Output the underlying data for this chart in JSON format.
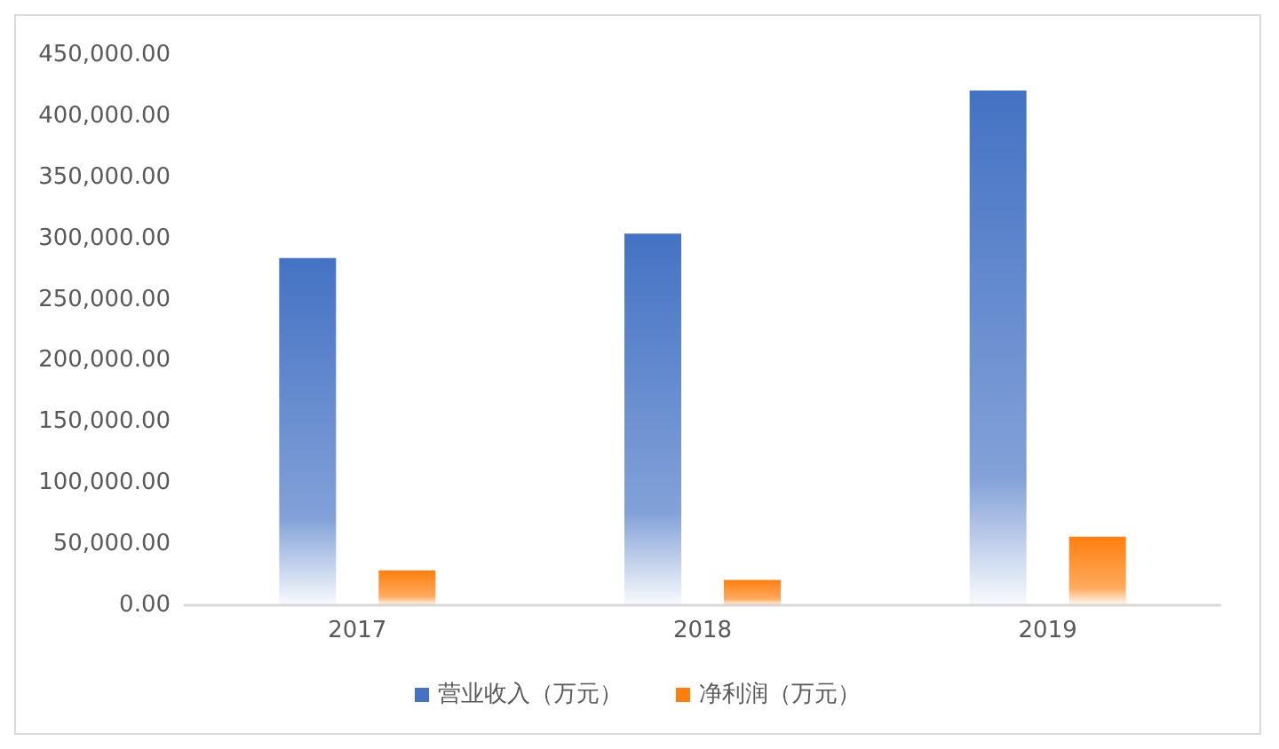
{
  "chart_data": {
    "type": "bar",
    "categories": [
      "2017",
      "2018",
      "2019"
    ],
    "series": [
      {
        "name": "营业收入（万元）",
        "color": "#4472c4",
        "values": [
          284000,
          304000,
          421000
        ]
      },
      {
        "name": "净利润（万元）",
        "color": "#ff7f0e",
        "values": [
          28500,
          20600,
          56000
        ]
      }
    ],
    "ylim": [
      0,
      450000
    ],
    "yticks": [
      {
        "value": 0,
        "label": "0.00"
      },
      {
        "value": 50000,
        "label": "50,000.00"
      },
      {
        "value": 100000,
        "label": "100,000.00"
      },
      {
        "value": 150000,
        "label": "150,000.00"
      },
      {
        "value": 200000,
        "label": "200,000.00"
      },
      {
        "value": 250000,
        "label": "250,000.00"
      },
      {
        "value": 300000,
        "label": "300,000.00"
      },
      {
        "value": 350000,
        "label": "350,000.00"
      },
      {
        "value": 400000,
        "label": "400,000.00"
      },
      {
        "value": 450000,
        "label": "450,000.00"
      }
    ],
    "grid": false,
    "legend": "bottom"
  }
}
